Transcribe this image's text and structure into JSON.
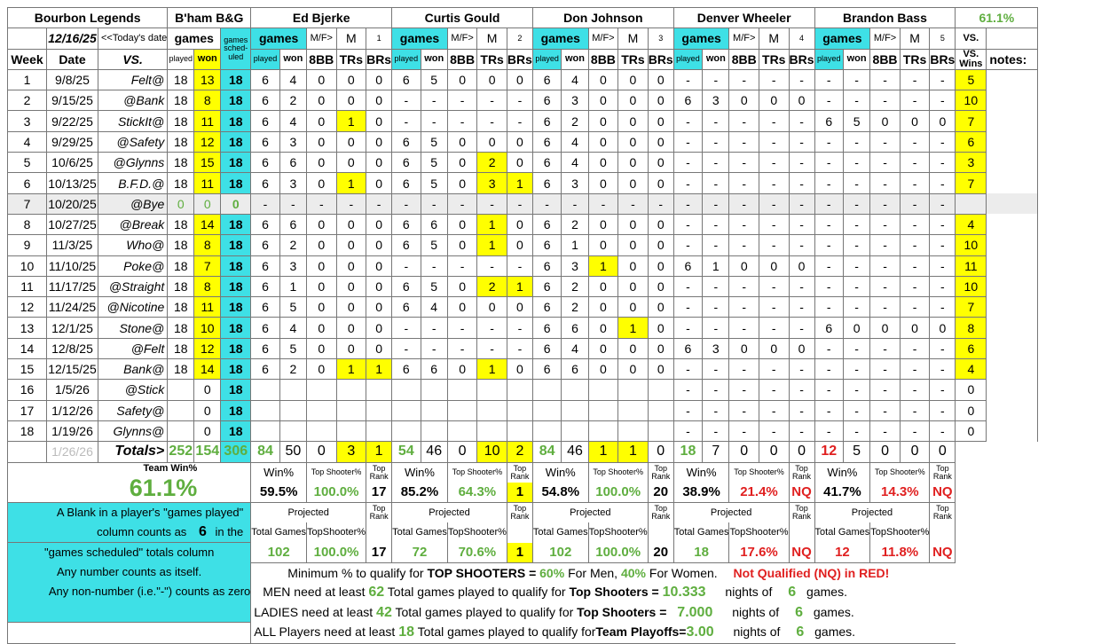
{
  "team": {
    "name": "Bourbon Legends",
    "venue": "B'ham B&G",
    "date": "12/16/25",
    "date_note": "<<Today's date",
    "pct": "61.1%"
  },
  "headers": {
    "week": "Week",
    "date": "Date",
    "vs": "VS.",
    "games": "games",
    "played": "played",
    "won": "won",
    "scheduled": "games sched-uled",
    "mf": "M/F>",
    "c8bb": "8BB",
    "trs": "TRs",
    "brs": "BRs",
    "vs_wins": "VS. Wins",
    "notes": "notes:"
  },
  "players": [
    {
      "name": "Ed Bjerke",
      "gender": "M",
      "num": "1"
    },
    {
      "name": "Curtis Gould",
      "gender": "M",
      "num": "2"
    },
    {
      "name": "Don Johnson",
      "gender": "M",
      "num": "3"
    },
    {
      "name": "Denver Wheeler",
      "gender": "M",
      "num": "4"
    },
    {
      "name": "Brandon Bass",
      "gender": "M",
      "num": "5"
    }
  ],
  "rows": [
    {
      "week": "1",
      "date": "9/8/25",
      "vs": "Felt@",
      "played": "18",
      "won": "13",
      "sched": "18",
      "p": [
        [
          "6",
          "4",
          "0",
          "0",
          "0"
        ],
        [
          "6",
          "5",
          "0",
          "0",
          "0"
        ],
        [
          "6",
          "4",
          "0",
          "0",
          "0"
        ],
        [
          "-",
          "-",
          "-",
          "-",
          "-"
        ],
        [
          "-",
          "-",
          "-",
          "-",
          "-"
        ]
      ],
      "vsw": "5"
    },
    {
      "week": "2",
      "date": "9/15/25",
      "vs": "@Bank",
      "played": "18",
      "won": "8",
      "sched": "18",
      "p": [
        [
          "6",
          "2",
          "0",
          "0",
          "0"
        ],
        [
          "-",
          "-",
          "-",
          "-",
          "-"
        ],
        [
          "6",
          "3",
          "0",
          "0",
          "0"
        ],
        [
          "6",
          "3",
          "0",
          "0",
          "0"
        ],
        [
          "-",
          "-",
          "-",
          "-",
          "-"
        ]
      ],
      "vsw": "10"
    },
    {
      "week": "3",
      "date": "9/22/25",
      "vs": "StickIt@",
      "played": "18",
      "won": "11",
      "sched": "18",
      "p": [
        [
          "6",
          "4",
          "0",
          "1",
          "0"
        ],
        [
          "-",
          "-",
          "-",
          "-",
          "-"
        ],
        [
          "6",
          "2",
          "0",
          "0",
          "0"
        ],
        [
          "-",
          "-",
          "-",
          "-",
          "-"
        ],
        [
          "6",
          "5",
          "0",
          "0",
          "0"
        ]
      ],
      "vsw": "7"
    },
    {
      "week": "4",
      "date": "9/29/25",
      "vs": "@Safety",
      "played": "18",
      "won": "12",
      "sched": "18",
      "p": [
        [
          "6",
          "3",
          "0",
          "0",
          "0"
        ],
        [
          "6",
          "5",
          "0",
          "0",
          "0"
        ],
        [
          "6",
          "4",
          "0",
          "0",
          "0"
        ],
        [
          "-",
          "-",
          "-",
          "-",
          "-"
        ],
        [
          "-",
          "-",
          "-",
          "-",
          "-"
        ]
      ],
      "vsw": "6"
    },
    {
      "week": "5",
      "date": "10/6/25",
      "vs": "@Glynns",
      "played": "18",
      "won": "15",
      "sched": "18",
      "p": [
        [
          "6",
          "6",
          "0",
          "0",
          "0"
        ],
        [
          "6",
          "5",
          "0",
          "2",
          "0"
        ],
        [
          "6",
          "4",
          "0",
          "0",
          "0"
        ],
        [
          "-",
          "-",
          "-",
          "-",
          "-"
        ],
        [
          "-",
          "-",
          "-",
          "-",
          "-"
        ]
      ],
      "vsw": "3"
    },
    {
      "week": "6",
      "date": "10/13/25",
      "vs": "B.F.D.@",
      "played": "18",
      "won": "11",
      "sched": "18",
      "p": [
        [
          "6",
          "3",
          "0",
          "1",
          "0"
        ],
        [
          "6",
          "5",
          "0",
          "3",
          "1"
        ],
        [
          "6",
          "3",
          "0",
          "0",
          "0"
        ],
        [
          "-",
          "-",
          "-",
          "-",
          "-"
        ],
        [
          "-",
          "-",
          "-",
          "-",
          "-"
        ]
      ],
      "vsw": "7"
    },
    {
      "week": "7",
      "date": "10/20/25",
      "vs": "@Bye",
      "played": "0",
      "won": "0",
      "sched": "0",
      "p": [
        [
          "-",
          "-",
          "-",
          "-",
          "-"
        ],
        [
          "-",
          "-",
          "-",
          "-",
          "-"
        ],
        [
          "-",
          "-",
          "-",
          "-",
          "-"
        ],
        [
          "-",
          "-",
          "-",
          "-",
          "-"
        ],
        [
          "-",
          "-",
          "-",
          "-",
          "-"
        ]
      ],
      "vsw": ""
    },
    {
      "week": "8",
      "date": "10/27/25",
      "vs": "@Break",
      "played": "18",
      "won": "14",
      "sched": "18",
      "p": [
        [
          "6",
          "6",
          "0",
          "0",
          "0"
        ],
        [
          "6",
          "6",
          "0",
          "1",
          "0"
        ],
        [
          "6",
          "2",
          "0",
          "0",
          "0"
        ],
        [
          "-",
          "-",
          "-",
          "-",
          "-"
        ],
        [
          "-",
          "-",
          "-",
          "-",
          "-"
        ]
      ],
      "vsw": "4"
    },
    {
      "week": "9",
      "date": "11/3/25",
      "vs": "Who@",
      "played": "18",
      "won": "8",
      "sched": "18",
      "p": [
        [
          "6",
          "2",
          "0",
          "0",
          "0"
        ],
        [
          "6",
          "5",
          "0",
          "1",
          "0"
        ],
        [
          "6",
          "1",
          "0",
          "0",
          "0"
        ],
        [
          "-",
          "-",
          "-",
          "-",
          "-"
        ],
        [
          "-",
          "-",
          "-",
          "-",
          "-"
        ]
      ],
      "vsw": "10"
    },
    {
      "week": "10",
      "date": "11/10/25",
      "vs": "Poke@",
      "played": "18",
      "won": "7",
      "sched": "18",
      "p": [
        [
          "6",
          "3",
          "0",
          "0",
          "0"
        ],
        [
          "-",
          "-",
          "-",
          "-",
          "-"
        ],
        [
          "6",
          "3",
          "1",
          "0",
          "0"
        ],
        [
          "6",
          "1",
          "0",
          "0",
          "0"
        ],
        [
          "-",
          "-",
          "-",
          "-",
          "-"
        ]
      ],
      "vsw": "11"
    },
    {
      "week": "11",
      "date": "11/17/25",
      "vs": "@Straight",
      "played": "18",
      "won": "8",
      "sched": "18",
      "p": [
        [
          "6",
          "1",
          "0",
          "0",
          "0"
        ],
        [
          "6",
          "5",
          "0",
          "2",
          "1"
        ],
        [
          "6",
          "2",
          "0",
          "0",
          "0"
        ],
        [
          "-",
          "-",
          "-",
          "-",
          "-"
        ],
        [
          "-",
          "-",
          "-",
          "-",
          "-"
        ]
      ],
      "vsw": "10"
    },
    {
      "week": "12",
      "date": "11/24/25",
      "vs": "@Nicotine",
      "played": "18",
      "won": "11",
      "sched": "18",
      "p": [
        [
          "6",
          "5",
          "0",
          "0",
          "0"
        ],
        [
          "6",
          "4",
          "0",
          "0",
          "0"
        ],
        [
          "6",
          "2",
          "0",
          "0",
          "0"
        ],
        [
          "-",
          "-",
          "-",
          "-",
          "-"
        ],
        [
          "-",
          "-",
          "-",
          "-",
          "-"
        ]
      ],
      "vsw": "7"
    },
    {
      "week": "13",
      "date": "12/1/25",
      "vs": "Stone@",
      "played": "18",
      "won": "10",
      "sched": "18",
      "p": [
        [
          "6",
          "4",
          "0",
          "0",
          "0"
        ],
        [
          "-",
          "-",
          "-",
          "-",
          "-"
        ],
        [
          "6",
          "6",
          "0",
          "1",
          "0"
        ],
        [
          "-",
          "-",
          "-",
          "-",
          "-"
        ],
        [
          "6",
          "0",
          "0",
          "0",
          "0"
        ]
      ],
      "vsw": "8"
    },
    {
      "week": "14",
      "date": "12/8/25",
      "vs": "@Felt",
      "played": "18",
      "won": "12",
      "sched": "18",
      "p": [
        [
          "6",
          "5",
          "0",
          "0",
          "0"
        ],
        [
          "-",
          "-",
          "-",
          "-",
          "-"
        ],
        [
          "6",
          "4",
          "0",
          "0",
          "0"
        ],
        [
          "6",
          "3",
          "0",
          "0",
          "0"
        ],
        [
          "-",
          "-",
          "-",
          "-",
          "-"
        ]
      ],
      "vsw": "6"
    },
    {
      "week": "15",
      "date": "12/15/25",
      "vs": "Bank@",
      "played": "18",
      "won": "14",
      "sched": "18",
      "p": [
        [
          "6",
          "2",
          "0",
          "1",
          "1"
        ],
        [
          "6",
          "6",
          "0",
          "1",
          "0"
        ],
        [
          "6",
          "6",
          "0",
          "0",
          "0"
        ],
        [
          "-",
          "-",
          "-",
          "-",
          "-"
        ],
        [
          "-",
          "-",
          "-",
          "-",
          "-"
        ]
      ],
      "vsw": "4"
    },
    {
      "week": "16",
      "date": "1/5/26",
      "vs": "@Stick",
      "played": "",
      "won": "0",
      "sched": "18",
      "p": [
        [
          "",
          "",
          "",
          "",
          ""
        ],
        [
          "",
          "",
          "",
          "",
          ""
        ],
        [
          "",
          "",
          "",
          "",
          ""
        ],
        [
          "-",
          "-",
          "-",
          "-",
          "-"
        ],
        [
          "-",
          "-",
          "-",
          "-",
          "-"
        ]
      ],
      "vsw": "0"
    },
    {
      "week": "17",
      "date": "1/12/26",
      "vs": "Safety@",
      "played": "",
      "won": "0",
      "sched": "18",
      "p": [
        [
          "",
          "",
          "",
          "",
          ""
        ],
        [
          "",
          "",
          "",
          "",
          ""
        ],
        [
          "",
          "",
          "",
          "",
          ""
        ],
        [
          "-",
          "-",
          "-",
          "-",
          "-"
        ],
        [
          "-",
          "-",
          "-",
          "-",
          "-"
        ]
      ],
      "vsw": "0"
    },
    {
      "week": "18",
      "date": "1/19/26",
      "vs": "Glynns@",
      "played": "",
      "won": "0",
      "sched": "18",
      "p": [
        [
          "",
          "",
          "",
          "",
          ""
        ],
        [
          "",
          "",
          "",
          "",
          ""
        ],
        [
          "",
          "",
          "",
          "",
          ""
        ],
        [
          "-",
          "-",
          "-",
          "-",
          "-"
        ],
        [
          "-",
          "-",
          "-",
          "-",
          "-"
        ]
      ],
      "vsw": "0"
    }
  ],
  "totals": {
    "date": "1/26/26",
    "label": "Totals>",
    "played": "252",
    "won": "154",
    "sched": "306",
    "p": [
      [
        "84",
        "50",
        "0",
        "3",
        "1"
      ],
      [
        "54",
        "46",
        "0",
        "10",
        "2"
      ],
      [
        "84",
        "46",
        "1",
        "1",
        "0"
      ],
      [
        "18",
        "7",
        "0",
        "0",
        "0"
      ],
      [
        "12",
        "5",
        "0",
        "0",
        "0"
      ]
    ]
  },
  "summary": {
    "team_win_label": "Team Win%",
    "team_win": "61.1%",
    "win_label": "Win%",
    "top_shooter_label": "Top Shooter%",
    "top_rank_label": "Top Rank",
    "projected_label": "Projected",
    "total_games_label": "Total Games",
    "topshooter_label": "TopShooter%",
    "stats": [
      {
        "win": "59.5%",
        "top": "100.0%",
        "rank": "17",
        "proj_games": "102",
        "proj_top": "100.0%",
        "proj_rank": "17"
      },
      {
        "win": "85.2%",
        "top": "64.3%",
        "rank": "1",
        "proj_games": "72",
        "proj_top": "70.6%",
        "proj_rank": "1"
      },
      {
        "win": "54.8%",
        "top": "100.0%",
        "rank": "20",
        "proj_games": "102",
        "proj_top": "100.0%",
        "proj_rank": "20"
      },
      {
        "win": "38.9%",
        "top": "21.4%",
        "rank": "NQ",
        "proj_games": "18",
        "proj_top": "17.6%",
        "proj_rank": "NQ"
      },
      {
        "win": "41.7%",
        "top": "14.3%",
        "rank": "NQ",
        "proj_games": "12",
        "proj_top": "11.8%",
        "proj_rank": "NQ"
      }
    ]
  },
  "notes": {
    "line1a": "A Blank in a player's \"games played\"",
    "line2a": "column counts as",
    "line2b": "6",
    "line2c": "in the",
    "line3": "\"games scheduled\" totals column",
    "line4": "Any number counts as itself.",
    "line5": "Any non-number (i.e.\"-\") counts as zero"
  },
  "rules": {
    "min_pct_label": "Minimum % to qualify for",
    "top_shooters_eq": "TOP SHOOTERS =",
    "men_pct": "60%",
    "for_men": "For Men,",
    "women_pct": "40%",
    "for_women": "For Women.",
    "nq_note": "Not Qualified (NQ) in RED!",
    "men_need": "MEN need at least",
    "men_games": "62",
    "ladies_need": "LADIES need at least",
    "ladies_games": "42",
    "all_need": "ALL Players need at least",
    "all_games": "18",
    "total_games_q": "Total games played to qualify for",
    "top_shooters_label": "Top Shooters =",
    "team_playoffs_label": "Team Playoffs=",
    "men_nights": "10.333",
    "ladies_nights": "7.000",
    "all_nights": "3.00",
    "nights_of": "nights of",
    "games_per_night": "6",
    "games_word": "games."
  }
}
